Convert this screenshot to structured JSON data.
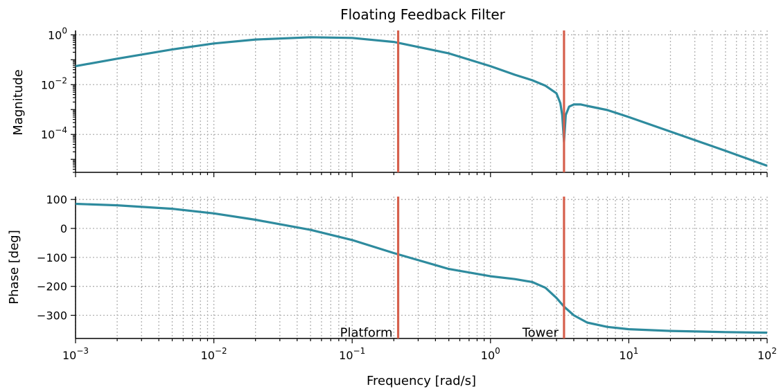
{
  "chart_data": [
    {
      "type": "line",
      "title": "Floating Feedback Filter",
      "ylabel": "Magnitude",
      "xscale": "log",
      "yscale": "log",
      "xlim": [
        0.001,
        100
      ],
      "ylim": [
        3e-06,
        1.5
      ],
      "grid": true,
      "yticks": [
        {
          "value": 1,
          "base": "10",
          "exp": "0"
        },
        {
          "value": 0.01,
          "base": "10",
          "exp": "−2"
        },
        {
          "value": 0.0001,
          "base": "10",
          "exp": "−4"
        }
      ],
      "series": [
        {
          "color": "#2e8b9e",
          "x": [
            0.001,
            0.002,
            0.005,
            0.01,
            0.02,
            0.05,
            0.1,
            0.2,
            0.5,
            1,
            1.5,
            2,
            2.5,
            3,
            3.2,
            3.3,
            3.4,
            3.5,
            3.7,
            4,
            4.5,
            5,
            7,
            10,
            20,
            50,
            100
          ],
          "y": [
            0.055,
            0.11,
            0.26,
            0.45,
            0.65,
            0.8,
            0.75,
            0.52,
            0.18,
            0.055,
            0.025,
            0.015,
            0.009,
            0.0045,
            0.0018,
            0.0006,
            5e-05,
            0.0006,
            0.0013,
            0.0016,
            0.0016,
            0.0014,
            0.00095,
            0.0005,
            0.00013,
            2.2e-05,
            5.5e-06
          ]
        }
      ],
      "vlines": [
        {
          "x": 0.215,
          "color": "#d6604d"
        },
        {
          "x": 3.4,
          "color": "#d6604d"
        }
      ]
    },
    {
      "type": "line",
      "xlabel": "Frequency [rad/s]",
      "ylabel": "Phase [deg]",
      "xscale": "log",
      "xlim": [
        0.001,
        100
      ],
      "ylim": [
        -380,
        110
      ],
      "grid": true,
      "yticks": [
        100,
        0,
        -100,
        -200,
        -300
      ],
      "xticks": [
        {
          "value": 0.001,
          "base": "10",
          "exp": "−3"
        },
        {
          "value": 0.01,
          "base": "10",
          "exp": "−2"
        },
        {
          "value": 0.1,
          "base": "10",
          "exp": "−1"
        },
        {
          "value": 1,
          "base": "10",
          "exp": "0"
        },
        {
          "value": 10,
          "base": "10",
          "exp": "1"
        },
        {
          "value": 100,
          "base": "10",
          "exp": "2"
        }
      ],
      "series": [
        {
          "color": "#2e8b9e",
          "x": [
            0.001,
            0.002,
            0.005,
            0.01,
            0.02,
            0.05,
            0.1,
            0.2,
            0.5,
            1,
            1.5,
            2,
            2.5,
            3,
            3.4,
            4,
            5,
            7,
            10,
            20,
            50,
            100
          ],
          "y": [
            85,
            80,
            68,
            52,
            30,
            -5,
            -40,
            -85,
            -140,
            -165,
            -175,
            -185,
            -205,
            -240,
            -270,
            -300,
            -325,
            -340,
            -348,
            -354,
            -358,
            -360
          ]
        }
      ],
      "vlines": [
        {
          "x": 0.215,
          "color": "#d6604d"
        },
        {
          "x": 3.4,
          "color": "#d6604d"
        }
      ],
      "annotations": [
        {
          "text": "Platform",
          "x": 0.215,
          "y": -345,
          "anchor": "end"
        },
        {
          "text": "Tower",
          "x": 3.4,
          "y": -345,
          "anchor": "end"
        }
      ]
    }
  ]
}
